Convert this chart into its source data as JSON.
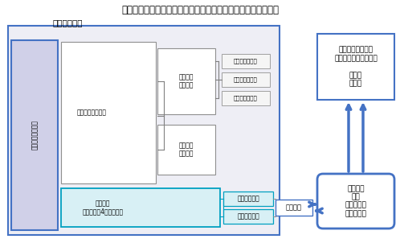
{
  "title": "明治薬科大学との連携大学院方式に基づく連携部門体制（案）",
  "title_fontsize": 8.5,
  "bg_color": "#ffffff",
  "meiji_label": "明治薬科大学",
  "daigakuin_label": "大学院薬学研究科",
  "senkou_label": "生命創薬科学専攻",
  "hakushi_zen_label": "博士課程\n（前期）",
  "hakushi_ko_label": "博士課程\n（後期）",
  "course1": "創薬化学コース",
  "course2": "生命科学コース",
  "course3": "連携部門コース",
  "yakugaku_label": "薬学専攻\n博士課程（4年生課程）",
  "iryo_label": "医療薬学分野",
  "kiso_label": "基礎薬学分野",
  "renkeibumen_label": "連携部門",
  "kokuritsu_label": "国立研究開発法人\n国立がん研究センター\n\n東病院\n薬剤部",
  "daigakuinsei_label": "大学院生\n教員\n外来研究員\n客員研究員",
  "meiji_bg_color": "#eeeef5",
  "daigakuin_box_color": "#d0d0e8",
  "daigakuin_border_color": "#4472c4",
  "meiji_border_color": "#4472c4",
  "cyan_box_color": "#d8f0f5",
  "cyan_box_border": "#00a0c0",
  "course_box_color": "#f5f5f5",
  "course_box_border": "#a0a0a0",
  "kokuritsu_box_border": "#4472c4",
  "daigakuinsei_box_border": "#4472c4",
  "arrow_color": "#4472c4",
  "renkeibumen_box_border": "#4472c4",
  "line_color": "#808080"
}
